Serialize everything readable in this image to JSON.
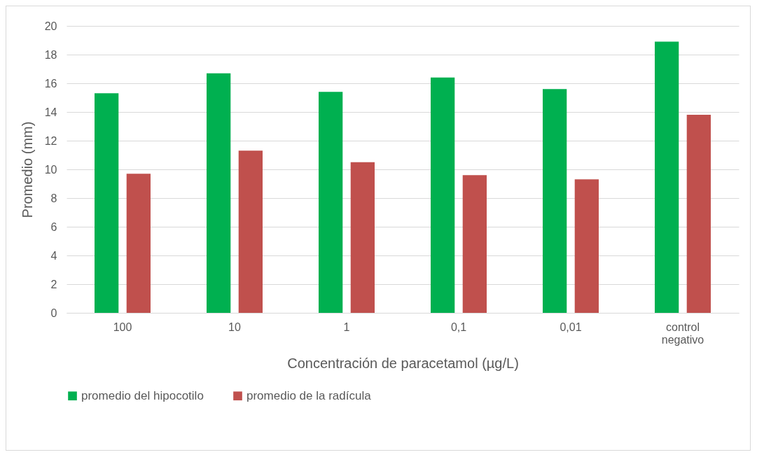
{
  "chart_data": {
    "type": "bar",
    "xlabel": "Concentración de paracetamol (µg/L)",
    "ylabel": "Promedio (mm)",
    "categories": [
      "100",
      "10",
      "1",
      "0,1",
      "0,01",
      "control negativo"
    ],
    "series": [
      {
        "name": "promedio del hipocotilo",
        "color": "#00b050",
        "values": [
          15.3,
          16.7,
          15.4,
          16.4,
          15.6,
          18.9
        ]
      },
      {
        "name": "promedio de la radícula",
        "color": "#c0504d",
        "values": [
          9.7,
          11.3,
          10.5,
          9.6,
          9.3,
          13.8
        ]
      }
    ],
    "ylim": [
      0,
      20
    ],
    "yticks": [
      0,
      2,
      4,
      6,
      8,
      10,
      12,
      14,
      16,
      18,
      20
    ],
    "grid": "y",
    "legend": "bottom"
  }
}
